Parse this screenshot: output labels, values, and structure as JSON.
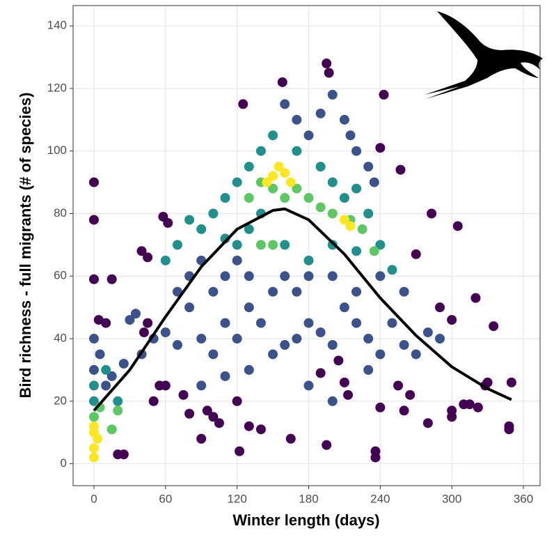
{
  "chart_data": {
    "type": "scatter",
    "x_label": "Winter length (days)",
    "y_label": "Bird richness - full migrants (# of species)",
    "xlim": [
      -17.5,
      374
    ],
    "ylim": [
      -7,
      146.5
    ],
    "xticks": [
      0,
      60,
      120,
      180,
      240,
      300,
      360
    ],
    "yticks": [
      0,
      20,
      40,
      60,
      80,
      100,
      120,
      140
    ],
    "grid": true,
    "series": [
      {
        "color": "#440154",
        "x": [
          0,
          0,
          0,
          122,
          236,
          236,
          195,
          165,
          158,
          195,
          197,
          243,
          125,
          305,
          320,
          335,
          350,
          348,
          348,
          310,
          300,
          300,
          90,
          120,
          140,
          130,
          100,
          40,
          45,
          58,
          62,
          280,
          265,
          260,
          240,
          255,
          213,
          210,
          205,
          190,
          330,
          328,
          322,
          315,
          95,
          105,
          80,
          75,
          60,
          55,
          50,
          42,
          45,
          25,
          20,
          283,
          300,
          290,
          270,
          257,
          240,
          15,
          10,
          4
        ],
        "values": [
          90,
          78,
          59,
          4,
          4,
          2,
          6,
          8,
          122,
          128,
          125,
          118,
          115,
          76,
          53,
          44,
          26,
          12,
          11,
          19,
          17,
          15,
          8,
          20,
          11,
          12,
          15,
          68,
          66,
          79,
          77,
          13,
          22,
          17,
          18,
          25,
          22,
          26,
          33,
          29,
          26,
          25,
          18,
          19,
          17,
          13,
          16,
          22,
          25,
          25,
          20,
          42,
          45,
          3,
          3,
          80,
          46,
          50,
          67,
          94,
          101,
          59,
          45,
          46
        ]
      },
      {
        "color": "#3b528b",
        "x": [
          30,
          35,
          50,
          60,
          70,
          80,
          90,
          100,
          110,
          120,
          130,
          140,
          150,
          160,
          170,
          180,
          190,
          200,
          210,
          220,
          230,
          240,
          250,
          260,
          270,
          280,
          290,
          150,
          160,
          170,
          180,
          200,
          220,
          240,
          260,
          70,
          80,
          90,
          100,
          110,
          120,
          130,
          90,
          110,
          130,
          180,
          200,
          230,
          160,
          170,
          180,
          190,
          200,
          210,
          215,
          220,
          230,
          235,
          40,
          25,
          15,
          10,
          5,
          0,
          0
        ],
        "values": [
          46,
          48,
          40,
          42,
          38,
          50,
          40,
          35,
          45,
          40,
          50,
          45,
          35,
          38,
          40,
          45,
          42,
          38,
          50,
          45,
          40,
          35,
          45,
          38,
          35,
          42,
          40,
          55,
          60,
          55,
          60,
          60,
          55,
          60,
          55,
          55,
          60,
          65,
          55,
          60,
          65,
          60,
          25,
          28,
          30,
          25,
          20,
          30,
          115,
          110,
          105,
          112,
          118,
          110,
          105,
          100,
          95,
          90,
          35,
          32,
          28,
          25,
          35,
          40,
          30
        ]
      },
      {
        "color": "#21908d",
        "x": [
          100,
          110,
          90,
          80,
          120,
          130,
          140,
          150,
          170,
          190,
          200,
          210,
          220,
          230,
          240,
          250,
          120,
          130,
          110,
          70,
          60,
          140,
          160,
          180,
          200,
          220,
          0,
          0,
          10,
          20
        ],
        "values": [
          80,
          85,
          75,
          78,
          90,
          95,
          100,
          105,
          100,
          95,
          90,
          85,
          88,
          80,
          70,
          62,
          70,
          75,
          72,
          70,
          65,
          80,
          70,
          65,
          70,
          68,
          20,
          25,
          30,
          20
        ]
      },
      {
        "color": "#5dc863",
        "x": [
          130,
          140,
          150,
          170,
          180,
          190,
          200,
          215,
          225,
          235,
          160,
          0,
          5,
          20,
          15,
          140,
          150
        ],
        "values": [
          85,
          90,
          88,
          88,
          85,
          82,
          80,
          78,
          75,
          68,
          85,
          15,
          18,
          17,
          11,
          70,
          70
        ]
      },
      {
        "color": "#fde725",
        "x": [
          150,
          155,
          160,
          165,
          145,
          210,
          215,
          0,
          0,
          0,
          3,
          0
        ],
        "values": [
          92,
          95,
          93,
          90,
          90,
          78,
          76,
          5,
          10,
          12,
          8,
          2
        ]
      },
      {
        "type": "line",
        "color": "#000000",
        "x": [
          0,
          30,
          60,
          90,
          120,
          150,
          160,
          180,
          210,
          240,
          270,
          300,
          330,
          350
        ],
        "values": [
          17,
          30,
          47,
          63,
          75,
          81,
          81.5,
          78,
          67,
          53,
          41,
          31,
          24,
          20.5
        ]
      }
    ]
  }
}
